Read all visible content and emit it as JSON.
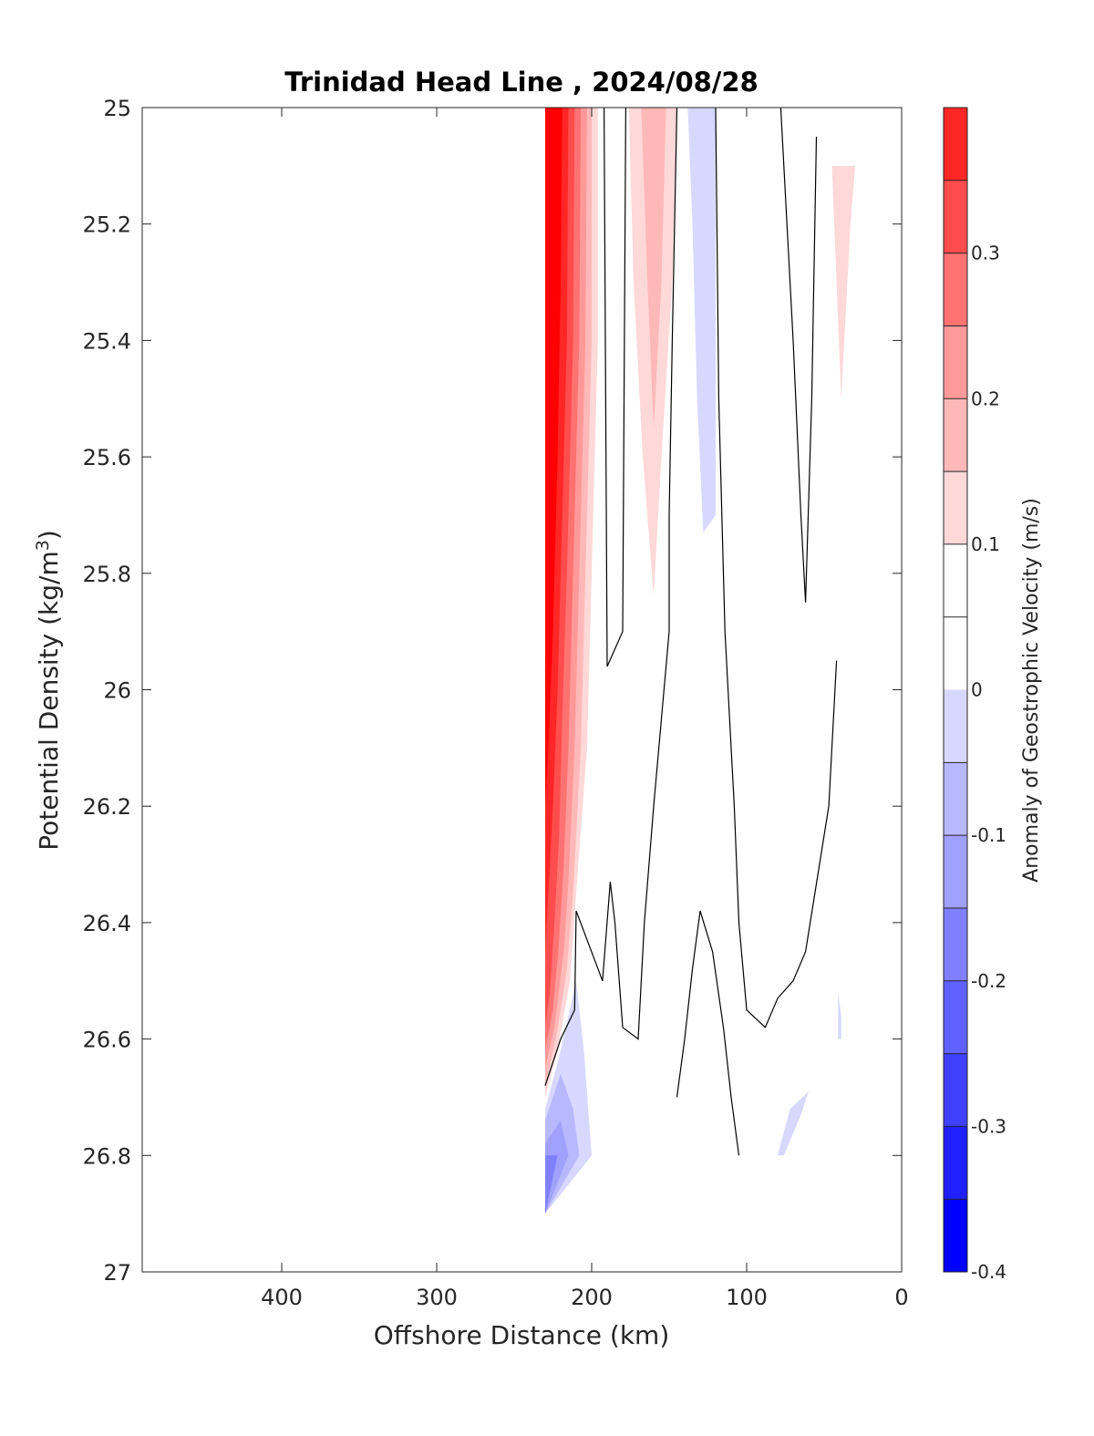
{
  "chart_data": {
    "type": "heatmap",
    "title": "Trinidad Head Line , 2024/08/28",
    "xlabel": "Offshore Distance (km)",
    "ylabel_main": "Potential Density (kg/m",
    "ylabel_sup": "3",
    "ylabel_tail": ")",
    "xlim": [
      490,
      0
    ],
    "ylim": [
      25,
      27
    ],
    "x_reversed": true,
    "y_reversed": true,
    "x_ticks": [
      400,
      300,
      200,
      100,
      0
    ],
    "x_tick_labels": [
      "400",
      "300",
      "200",
      "100",
      "0"
    ],
    "y_ticks": [
      25,
      25.2,
      25.4,
      25.6,
      25.8,
      26,
      26.2,
      26.4,
      26.6,
      26.8,
      27
    ],
    "y_tick_labels": [
      "25",
      "25.2",
      "25.4",
      "25.6",
      "25.8",
      "26",
      "26.2",
      "26.4",
      "26.6",
      "26.8",
      "27"
    ],
    "grid": false,
    "colorbar": {
      "label": "Anomaly of Geostrophic Velocity (m/s)",
      "range": [
        -0.4,
        0.4
      ],
      "levels": [
        -0.4,
        -0.35,
        -0.3,
        -0.25,
        -0.2,
        -0.15,
        -0.1,
        -0.05,
        0.05,
        0.1,
        0.15,
        0.2,
        0.25,
        0.3,
        0.35,
        0.4
      ],
      "bands": [
        {
          "from": -0.4,
          "to": -0.35,
          "color": "#0000ff"
        },
        {
          "from": -0.35,
          "to": -0.3,
          "color": "#2020ff"
        },
        {
          "from": -0.3,
          "to": -0.25,
          "color": "#4040ff"
        },
        {
          "from": -0.25,
          "to": -0.2,
          "color": "#6060ff"
        },
        {
          "from": -0.2,
          "to": -0.15,
          "color": "#8080ff"
        },
        {
          "from": -0.15,
          "to": -0.1,
          "color": "#a0a0ff"
        },
        {
          "from": -0.1,
          "to": -0.05,
          "color": "#b8b8ff"
        },
        {
          "from": -0.05,
          "to": -0.0,
          "color": "#d8d8ff"
        },
        {
          "from": -0.0,
          "to": 0.05,
          "color": "#ffffff"
        },
        {
          "from": 0.05,
          "to": 0.1,
          "color": "#ffffff"
        },
        {
          "from": 0.1,
          "to": 0.15,
          "color": "#ffd8d8"
        },
        {
          "from": 0.15,
          "to": 0.2,
          "color": "#ffb8b8"
        },
        {
          "from": 0.2,
          "to": 0.25,
          "color": "#ff9999"
        },
        {
          "from": 0.25,
          "to": 0.3,
          "color": "#ff7272"
        },
        {
          "from": 0.3,
          "to": 0.35,
          "color": "#ff4c4c"
        },
        {
          "from": 0.35,
          "to": 0.4,
          "color": "#ff2626"
        }
      ],
      "tick_values": [
        0.3,
        0.2,
        0.1,
        0,
        -0.1,
        -0.2,
        -0.3,
        -0.4
      ],
      "tick_labels": [
        "0.3",
        "0.2",
        "0.1",
        "0",
        "-0.1",
        "-0.2",
        "-0.3",
        "-0.4"
      ]
    },
    "filled_regions": [
      {
        "name": "red-core-edge",
        "color": "#ffd8d8",
        "points": [
          [
            230,
            25
          ],
          [
            196,
            25
          ],
          [
            196,
            25.4
          ],
          [
            200,
            25.8
          ],
          [
            203,
            26.1
          ],
          [
            210,
            26.35
          ],
          [
            214,
            26.5
          ],
          [
            222,
            26.62
          ],
          [
            230,
            26.7
          ]
        ]
      },
      {
        "name": "red-core-1",
        "color": "#ffb8b8",
        "points": [
          [
            230,
            25
          ],
          [
            200,
            25
          ],
          [
            200,
            25.4
          ],
          [
            204,
            25.8
          ],
          [
            207,
            26.1
          ],
          [
            212,
            26.35
          ],
          [
            216,
            26.48
          ],
          [
            223,
            26.6
          ],
          [
            230,
            26.68
          ]
        ]
      },
      {
        "name": "red-core-2",
        "color": "#ff9999",
        "points": [
          [
            230,
            25
          ],
          [
            203,
            25
          ],
          [
            204,
            25.4
          ],
          [
            208,
            25.8
          ],
          [
            211,
            26.1
          ],
          [
            215,
            26.33
          ],
          [
            218,
            26.45
          ],
          [
            224,
            26.58
          ],
          [
            230,
            26.65
          ]
        ]
      },
      {
        "name": "red-core-3",
        "color": "#ff7272",
        "points": [
          [
            230,
            25
          ],
          [
            207,
            25
          ],
          [
            208,
            25.4
          ],
          [
            212,
            25.8
          ],
          [
            215,
            26.1
          ],
          [
            218,
            26.3
          ],
          [
            221,
            26.43
          ],
          [
            225,
            26.55
          ],
          [
            230,
            26.62
          ]
        ]
      },
      {
        "name": "red-core-4",
        "color": "#ff4c4c",
        "points": [
          [
            230,
            25
          ],
          [
            211,
            25
          ],
          [
            212,
            25.4
          ],
          [
            216,
            25.8
          ],
          [
            219,
            26.05
          ],
          [
            221,
            26.25
          ],
          [
            224,
            26.4
          ],
          [
            227,
            26.52
          ],
          [
            230,
            26.58
          ]
        ]
      },
      {
        "name": "red-core-5",
        "color": "#ff2626",
        "points": [
          [
            230,
            25
          ],
          [
            215,
            25
          ],
          [
            216,
            25.4
          ],
          [
            220,
            25.8
          ],
          [
            222,
            26.0
          ],
          [
            225,
            26.2
          ],
          [
            228,
            26.35
          ],
          [
            230,
            26.45
          ]
        ]
      },
      {
        "name": "red-core-6",
        "color": "#ff0000",
        "points": [
          [
            228,
            25
          ],
          [
            219,
            25
          ],
          [
            220,
            25.3
          ],
          [
            222,
            25.6
          ],
          [
            225,
            25.9
          ],
          [
            228,
            26.1
          ],
          [
            230,
            26.2
          ],
          [
            230,
            25
          ]
        ]
      },
      {
        "name": "pink-plume-160",
        "color": "#ffd8d8",
        "points": [
          [
            176,
            25
          ],
          [
            145,
            25
          ],
          [
            148,
            25.3
          ],
          [
            155,
            25.6
          ],
          [
            160,
            25.84
          ],
          [
            167,
            25.6
          ],
          [
            173,
            25.3
          ]
        ]
      },
      {
        "name": "pink-plume-160-inner",
        "color": "#ffb8b8",
        "points": [
          [
            168,
            25
          ],
          [
            152,
            25
          ],
          [
            155,
            25.3
          ],
          [
            160,
            25.55
          ],
          [
            164,
            25.3
          ]
        ]
      },
      {
        "name": "blue-plume-130",
        "color": "#d8d8ff",
        "points": [
          [
            138,
            25
          ],
          [
            120,
            25
          ],
          [
            120,
            25.7
          ],
          [
            128,
            25.73
          ],
          [
            132,
            25.5
          ],
          [
            135,
            25.2
          ]
        ]
      },
      {
        "name": "pink-plume-40",
        "color": "#ffd8d8",
        "points": [
          [
            45,
            25.1
          ],
          [
            30,
            25.1
          ],
          [
            33,
            25.2
          ],
          [
            36,
            25.35
          ],
          [
            39,
            25.5
          ],
          [
            42,
            25.3
          ]
        ]
      },
      {
        "name": "blue-lower-edge",
        "color": "#d8d8ff",
        "points": [
          [
            230,
            26.9
          ],
          [
            230,
            26.72
          ],
          [
            220,
            26.62
          ],
          [
            210,
            26.5
          ],
          [
            205,
            26.62
          ],
          [
            200,
            26.8
          ]
        ]
      },
      {
        "name": "blue-lower-1",
        "color": "#b8b8ff",
        "points": [
          [
            230,
            26.9
          ],
          [
            230,
            26.74
          ],
          [
            220,
            26.66
          ],
          [
            212,
            26.72
          ],
          [
            208,
            26.8
          ]
        ]
      },
      {
        "name": "blue-lower-2",
        "color": "#a0a0ff",
        "points": [
          [
            230,
            26.9
          ],
          [
            230,
            26.78
          ],
          [
            220,
            26.74
          ],
          [
            215,
            26.8
          ]
        ]
      },
      {
        "name": "blue-lower-3",
        "color": "#8080ff",
        "points": [
          [
            230,
            26.9
          ],
          [
            230,
            26.8
          ],
          [
            222,
            26.8
          ]
        ]
      },
      {
        "name": "blue-patch-40",
        "color": "#d8d8ff",
        "points": [
          [
            41,
            26.6
          ],
          [
            41,
            26.52
          ],
          [
            39,
            26.56
          ],
          [
            39,
            26.6
          ]
        ]
      },
      {
        "name": "blue-patch-80",
        "color": "#d8d8ff",
        "points": [
          [
            80,
            26.8
          ],
          [
            72,
            26.72
          ],
          [
            60,
            26.69
          ],
          [
            65,
            26.73
          ],
          [
            76,
            26.8
          ]
        ]
      }
    ],
    "contour_lines": [
      {
        "name": "zero-contour-190",
        "points": [
          [
            192,
            25
          ],
          [
            190,
            25.96
          ],
          [
            180,
            25.9
          ],
          [
            178,
            25
          ]
        ]
      },
      {
        "name": "zero-contour-145",
        "points": [
          [
            145,
            25
          ],
          [
            148,
            25.4
          ],
          [
            150,
            25.7
          ],
          [
            150,
            25.9
          ],
          [
            155,
            26.05
          ],
          [
            160,
            26.2
          ],
          [
            166,
            26.4
          ],
          [
            170,
            26.6
          ],
          [
            180,
            26.58
          ],
          [
            185,
            26.4
          ],
          [
            188,
            26.33
          ],
          [
            193,
            26.5
          ],
          [
            210,
            26.38
          ],
          [
            211,
            26.55
          ],
          [
            220,
            26.6
          ],
          [
            230,
            26.68
          ]
        ]
      },
      {
        "name": "zero-contour-118",
        "points": [
          [
            120,
            25
          ],
          [
            118,
            25.5
          ],
          [
            114,
            25.9
          ],
          [
            108,
            26.2
          ],
          [
            105,
            26.4
          ],
          [
            100,
            26.55
          ],
          [
            88,
            26.58
          ],
          [
            80,
            26.53
          ],
          [
            70,
            26.5
          ],
          [
            62,
            26.45
          ],
          [
            56,
            26.35
          ],
          [
            47,
            26.2
          ],
          [
            43,
            26.0
          ],
          [
            42,
            25.95
          ]
        ]
      },
      {
        "name": "zero-contour-75",
        "points": [
          [
            78,
            25
          ],
          [
            70,
            25.4
          ],
          [
            65,
            25.7
          ],
          [
            62,
            25.85
          ],
          [
            58,
            25.5
          ],
          [
            55,
            25.05
          ]
        ]
      },
      {
        "name": "zero-contour-140",
        "points": [
          [
            145,
            26.7
          ],
          [
            140,
            26.6
          ],
          [
            135,
            26.48
          ],
          [
            130,
            26.38
          ],
          [
            122,
            26.45
          ],
          [
            115,
            26.58
          ],
          [
            110,
            26.7
          ],
          [
            105,
            26.8
          ]
        ]
      }
    ]
  }
}
